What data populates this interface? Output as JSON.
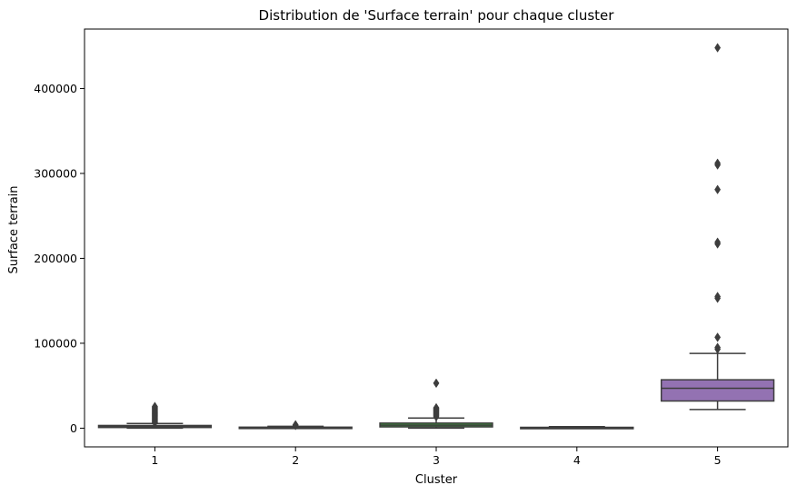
{
  "chart_data": {
    "type": "boxplot",
    "title": "Distribution de 'Surface terrain' pour chaque cluster",
    "xlabel": "Cluster",
    "ylabel": "Surface terrain",
    "ylim": [
      -22000,
      470000
    ],
    "yticks": [
      0,
      100000,
      200000,
      300000,
      400000
    ],
    "ytick_labels": [
      "0",
      "100000",
      "200000",
      "300000",
      "400000"
    ],
    "categories": [
      "1",
      "2",
      "3",
      "4",
      "5"
    ],
    "grid": false,
    "series": [
      {
        "category": "1",
        "whisker_low": 0,
        "q1": 800,
        "median": 1800,
        "q3": 3200,
        "whisker_high": 5500,
        "outliers": [
          6500,
          7500,
          8500,
          9500,
          10500,
          11500,
          12500,
          13500,
          14500,
          15500,
          16500,
          17500,
          18500,
          19500,
          20500,
          21500,
          22500,
          23500,
          24500,
          25500
        ],
        "color": "#3274a1"
      },
      {
        "category": "2",
        "whisker_low": 0,
        "q1": 300,
        "median": 700,
        "q3": 1200,
        "whisker_high": 2200,
        "outliers": [
          3200,
          4000
        ],
        "color": "#e1812c"
      },
      {
        "category": "3",
        "whisker_low": 0,
        "q1": 1500,
        "median": 3500,
        "q3": 6000,
        "whisker_high": 12000,
        "outliers": [
          13500,
          15000,
          16000,
          17000,
          18000,
          19000,
          20000,
          21000,
          22000,
          23000,
          24000,
          53000
        ],
        "color": "#3a923a"
      },
      {
        "category": "4",
        "whisker_low": 0,
        "q1": 300,
        "median": 600,
        "q3": 1000,
        "whisker_high": 1800,
        "outliers": [],
        "color": "#c03d3e"
      },
      {
        "category": "5",
        "whisker_low": 22000,
        "q1": 32000,
        "median": 47000,
        "q3": 57000,
        "whisker_high": 88000,
        "outliers": [
          93000,
          95000,
          107000,
          153000,
          155000,
          217000,
          219000,
          281000,
          310000,
          312000,
          448000
        ],
        "color": "#9372b2"
      }
    ]
  }
}
